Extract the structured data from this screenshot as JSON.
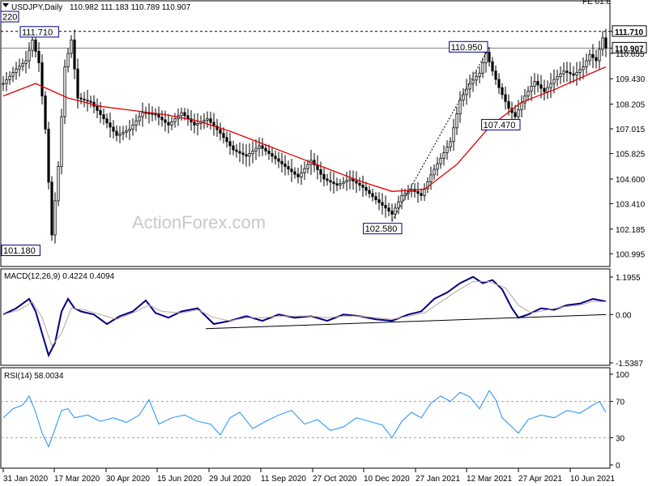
{
  "chart_data": [
    {
      "type": "candlestick",
      "title": "USDJPY,Daily",
      "ohlc_label": "110.982 111.183 110.789 110.907",
      "watermark": "ActionForex.com",
      "ylim": [
        100.5,
        112.6
      ],
      "y_ticks": [
        "111.710",
        "110.907",
        "110.655",
        "109.430",
        "108.205",
        "107.015",
        "105.825",
        "104.600",
        "103.410",
        "102.185",
        "100.995"
      ],
      "y_tick_values": [
        111.71,
        110.907,
        110.655,
        109.43,
        108.205,
        107.015,
        105.825,
        104.6,
        103.41,
        102.185,
        100.995
      ],
      "x_labels": [
        "31 Jan 2020",
        "17 Mar 2020",
        "30 Apr 2020",
        "15 Jun 2020",
        "29 Jul 2020",
        "11 Sep 2020",
        "27 Oct 2020",
        "10 Dec 2020",
        "27 Jan 2021",
        "12 Mar 2021",
        "27 Apr 2021",
        "10 Jun 2021"
      ],
      "price_path": [
        [
          0,
          109.2
        ],
        [
          8,
          109.9
        ],
        [
          14,
          110.3
        ],
        [
          18,
          111.3
        ],
        [
          22,
          110.2
        ],
        [
          26,
          107.0
        ],
        [
          30,
          101.9
        ],
        [
          34,
          105.2
        ],
        [
          38,
          110.0
        ],
        [
          42,
          111.3
        ],
        [
          46,
          108.5
        ],
        [
          54,
          108.3
        ],
        [
          62,
          107.5
        ],
        [
          70,
          106.7
        ],
        [
          78,
          107.0
        ],
        [
          86,
          107.8
        ],
        [
          94,
          107.7
        ],
        [
          102,
          107.2
        ],
        [
          110,
          107.8
        ],
        [
          118,
          107.2
        ],
        [
          126,
          107.5
        ],
        [
          134,
          106.8
        ],
        [
          142,
          106.0
        ],
        [
          150,
          105.7
        ],
        [
          158,
          106.2
        ],
        [
          166,
          105.7
        ],
        [
          174,
          105.2
        ],
        [
          182,
          104.7
        ],
        [
          190,
          105.5
        ],
        [
          198,
          104.6
        ],
        [
          206,
          104.3
        ],
        [
          214,
          104.6
        ],
        [
          222,
          104.2
        ],
        [
          230,
          103.6
        ],
        [
          236,
          103.2
        ],
        [
          240,
          102.9
        ],
        [
          246,
          103.8
        ],
        [
          252,
          104.1
        ],
        [
          258,
          103.8
        ],
        [
          264,
          104.8
        ],
        [
          270,
          105.6
        ],
        [
          276,
          106.4
        ],
        [
          282,
          108.4
        ],
        [
          288,
          109.2
        ],
        [
          294,
          109.7
        ],
        [
          298,
          110.7
        ],
        [
          302,
          109.8
        ],
        [
          306,
          109.0
        ],
        [
          312,
          108.0
        ],
        [
          316,
          107.6
        ],
        [
          322,
          108.6
        ],
        [
          328,
          109.3
        ],
        [
          334,
          108.8
        ],
        [
          340,
          109.4
        ],
        [
          346,
          109.8
        ],
        [
          352,
          109.6
        ],
        [
          358,
          110.0
        ],
        [
          362,
          110.6
        ],
        [
          366,
          110.3
        ],
        [
          370,
          111.4
        ],
        [
          372,
          110.907
        ]
      ],
      "series": [
        {
          "name": "",
          "color": "#e00000",
          "points": [
            [
              0,
              108.6
            ],
            [
              20,
              109.2
            ],
            [
              40,
              108.5
            ],
            [
              60,
              108.1
            ],
            [
              80,
              107.9
            ],
            [
              100,
              107.7
            ],
            [
              120,
              107.4
            ],
            [
              140,
              106.9
            ],
            [
              160,
              106.3
            ],
            [
              180,
              105.7
            ],
            [
              200,
              105.1
            ],
            [
              220,
              104.5
            ],
            [
              240,
              104.0
            ],
            [
              260,
              104.1
            ],
            [
              280,
              105.3
            ],
            [
              300,
              107.1
            ],
            [
              320,
              108.3
            ],
            [
              340,
              108.9
            ],
            [
              360,
              109.6
            ],
            [
              372,
              110.0
            ]
          ]
        }
      ],
      "annotations": [
        {
          "label": "111.710",
          "x": 20,
          "y": 111.71
        },
        {
          "label": "101.180",
          "x": 18,
          "y": 101.18
        },
        {
          "label": "110.950",
          "x": 300,
          "y": 110.95
        },
        {
          "label": "107.470",
          "x": 314,
          "y": 107.47
        },
        {
          "label": "102.580",
          "x": 240,
          "y": 102.58
        }
      ],
      "left_label": "220",
      "top_right_label": "FE 61.8",
      "hlines": [
        {
          "value": 111.71,
          "style": "dashed",
          "color": "#000000"
        },
        {
          "value": 110.907,
          "style": "solid",
          "color": "#808080"
        }
      ],
      "trendline": [
        [
          240,
          102.58
        ],
        [
          300,
          110.95
        ]
      ]
    },
    {
      "type": "line",
      "title": "MACD(12,26,9) 0.4224 0.4094",
      "ylim": [
        -1.5387,
        1.1955
      ],
      "y_ticks": [
        "1.1955",
        "0.00",
        "-1.5387"
      ],
      "y_tick_values": [
        1.1955,
        0.0,
        -1.5387
      ],
      "series": [
        {
          "name": "",
          "color": "#000080",
          "points": [
            [
              0,
              0.0
            ],
            [
              8,
              0.2
            ],
            [
              16,
              0.5
            ],
            [
              20,
              0.1
            ],
            [
              24,
              -0.6
            ],
            [
              28,
              -1.3
            ],
            [
              32,
              -0.9
            ],
            [
              36,
              0.1
            ],
            [
              40,
              0.5
            ],
            [
              44,
              0.2
            ],
            [
              48,
              0.1
            ],
            [
              56,
              0.0
            ],
            [
              64,
              -0.3
            ],
            [
              72,
              -0.05
            ],
            [
              80,
              0.1
            ],
            [
              88,
              0.45
            ],
            [
              94,
              0.05
            ],
            [
              102,
              -0.1
            ],
            [
              110,
              0.1
            ],
            [
              120,
              0.2
            ],
            [
              130,
              -0.3
            ],
            [
              140,
              -0.2
            ],
            [
              150,
              -0.05
            ],
            [
              160,
              -0.2
            ],
            [
              170,
              0.0
            ],
            [
              180,
              -0.1
            ],
            [
              190,
              -0.05
            ],
            [
              200,
              -0.2
            ],
            [
              210,
              0.0
            ],
            [
              220,
              -0.05
            ],
            [
              230,
              -0.15
            ],
            [
              240,
              -0.2
            ],
            [
              250,
              0.0
            ],
            [
              258,
              0.1
            ],
            [
              266,
              0.5
            ],
            [
              274,
              0.7
            ],
            [
              282,
              1.0
            ],
            [
              290,
              1.2
            ],
            [
              296,
              1.0
            ],
            [
              302,
              1.1
            ],
            [
              308,
              0.8
            ],
            [
              314,
              0.2
            ],
            [
              318,
              -0.1
            ],
            [
              324,
              0.0
            ],
            [
              332,
              0.2
            ],
            [
              340,
              0.15
            ],
            [
              348,
              0.3
            ],
            [
              356,
              0.35
            ],
            [
              364,
              0.5
            ],
            [
              372,
              0.42
            ]
          ]
        },
        {
          "name": "",
          "color": "#c0a0a0",
          "points": [
            [
              0,
              0.0
            ],
            [
              10,
              0.15
            ],
            [
              18,
              0.4
            ],
            [
              24,
              -0.1
            ],
            [
              30,
              -1.0
            ],
            [
              36,
              -0.6
            ],
            [
              42,
              0.2
            ],
            [
              50,
              0.15
            ],
            [
              60,
              0.0
            ],
            [
              70,
              -0.15
            ],
            [
              80,
              0.05
            ],
            [
              90,
              0.3
            ],
            [
              98,
              0.1
            ],
            [
              110,
              0.05
            ],
            [
              120,
              0.15
            ],
            [
              130,
              -0.1
            ],
            [
              140,
              -0.2
            ],
            [
              150,
              -0.1
            ],
            [
              160,
              -0.1
            ],
            [
              170,
              -0.05
            ],
            [
              180,
              -0.05
            ],
            [
              190,
              -0.05
            ],
            [
              200,
              -0.1
            ],
            [
              210,
              -0.05
            ],
            [
              220,
              -0.05
            ],
            [
              230,
              -0.1
            ],
            [
              240,
              -0.15
            ],
            [
              250,
              -0.05
            ],
            [
              260,
              0.05
            ],
            [
              270,
              0.4
            ],
            [
              280,
              0.75
            ],
            [
              290,
              1.05
            ],
            [
              300,
              1.05
            ],
            [
              310,
              0.85
            ],
            [
              318,
              0.3
            ],
            [
              326,
              0.05
            ],
            [
              336,
              0.15
            ],
            [
              346,
              0.25
            ],
            [
              356,
              0.3
            ],
            [
              364,
              0.42
            ],
            [
              372,
              0.41
            ]
          ]
        }
      ],
      "trendline": [
        [
          125,
          -0.45
        ],
        [
          372,
          0.0
        ]
      ]
    },
    {
      "type": "line",
      "title": "RSI(14) 58.0034",
      "ylim": [
        0,
        100
      ],
      "y_ticks": [
        "100",
        "70",
        "30",
        "0"
      ],
      "y_tick_values": [
        100,
        70,
        30,
        0
      ],
      "reference_levels": [
        70,
        30
      ],
      "series": [
        {
          "name": "",
          "color": "#1e90ff",
          "points": [
            [
              0,
              52
            ],
            [
              6,
              62
            ],
            [
              12,
              66
            ],
            [
              16,
              76
            ],
            [
              20,
              58
            ],
            [
              24,
              35
            ],
            [
              28,
              20
            ],
            [
              32,
              40
            ],
            [
              36,
              60
            ],
            [
              40,
              62
            ],
            [
              44,
              52
            ],
            [
              52,
              55
            ],
            [
              60,
              48
            ],
            [
              68,
              52
            ],
            [
              76,
              47
            ],
            [
              84,
              55
            ],
            [
              90,
              72
            ],
            [
              96,
              45
            ],
            [
              104,
              52
            ],
            [
              112,
              55
            ],
            [
              120,
              48
            ],
            [
              128,
              45
            ],
            [
              134,
              33
            ],
            [
              140,
              52
            ],
            [
              146,
              58
            ],
            [
              154,
              40
            ],
            [
              162,
              48
            ],
            [
              170,
              55
            ],
            [
              178,
              60
            ],
            [
              186,
              45
            ],
            [
              194,
              50
            ],
            [
              202,
              38
            ],
            [
              210,
              42
            ],
            [
              218,
              52
            ],
            [
              226,
              48
            ],
            [
              234,
              44
            ],
            [
              240,
              30
            ],
            [
              246,
              48
            ],
            [
              252,
              58
            ],
            [
              258,
              52
            ],
            [
              264,
              68
            ],
            [
              270,
              76
            ],
            [
              276,
              70
            ],
            [
              282,
              80
            ],
            [
              288,
              75
            ],
            [
              294,
              62
            ],
            [
              300,
              82
            ],
            [
              304,
              72
            ],
            [
              308,
              52
            ],
            [
              314,
              42
            ],
            [
              318,
              35
            ],
            [
              324,
              50
            ],
            [
              332,
              55
            ],
            [
              340,
              52
            ],
            [
              348,
              60
            ],
            [
              356,
              57
            ],
            [
              364,
              66
            ],
            [
              368,
              70
            ],
            [
              372,
              58
            ]
          ]
        }
      ]
    }
  ]
}
